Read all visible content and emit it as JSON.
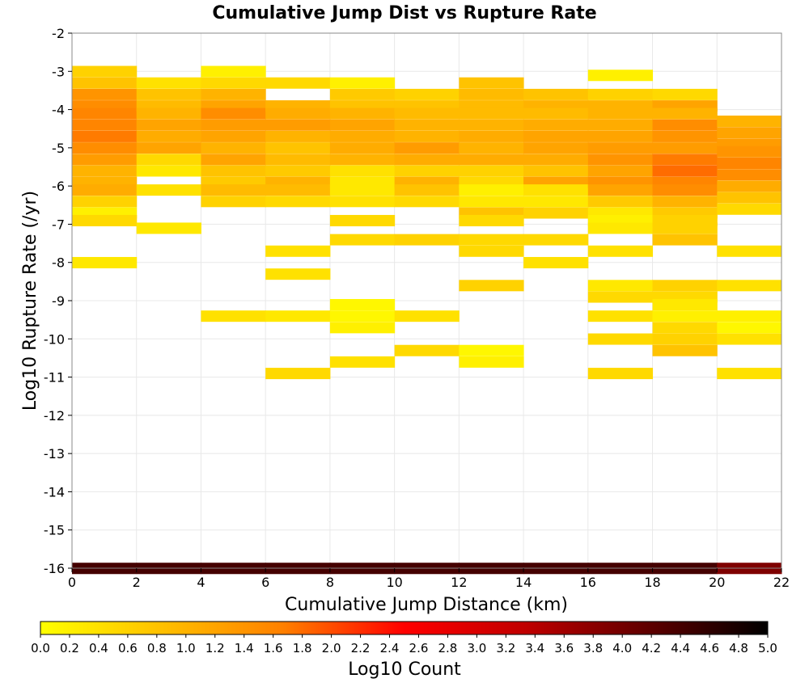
{
  "chart_data": {
    "type": "heatmap",
    "title": "Cumulative Jump Dist vs Rupture Rate",
    "xlabel": "Cumulative Jump Distance (km)",
    "ylabel": "Log10 Rupture Rate (/yr)",
    "colorbar_label": "Log10 Count",
    "xlim": [
      0,
      22
    ],
    "ylim": [
      -16,
      -2
    ],
    "x_ticks": [
      0,
      2,
      4,
      6,
      8,
      10,
      12,
      14,
      16,
      18,
      20,
      22
    ],
    "y_ticks": [
      -16,
      -15,
      -14,
      -13,
      -12,
      -11,
      -10,
      -9,
      -8,
      -7,
      -6,
      -5,
      -4,
      -3,
      -2
    ],
    "colorbar_range": [
      0.0,
      5.0
    ],
    "colorbar_ticks": [
      "0.0",
      "0.2",
      "0.4",
      "0.6",
      "0.8",
      "1.0",
      "1.2",
      "1.4",
      "1.6",
      "1.8",
      "2.0",
      "2.2",
      "2.4",
      "2.6",
      "2.8",
      "3.0",
      "3.2",
      "3.4",
      "3.6",
      "3.8",
      "4.0",
      "4.2",
      "4.4",
      "4.6",
      "4.8",
      "5.0"
    ],
    "colormap": [
      "#ffff00",
      "#ffc000",
      "#ff8000",
      "#ff0000",
      "#c00000",
      "#600000",
      "#000000"
    ],
    "cell_width": 2,
    "cell_height": 0.2857,
    "columns": [
      {
        "x": [
          0,
          2
        ],
        "cells": [
          [
            -3.0,
            0.6
          ],
          [
            -3.3,
            0.8
          ],
          [
            -3.6,
            1.4
          ],
          [
            -3.9,
            1.5
          ],
          [
            -4.1,
            1.6
          ],
          [
            -4.4,
            1.6
          ],
          [
            -4.7,
            1.7
          ],
          [
            -5.0,
            1.5
          ],
          [
            -5.3,
            1.3
          ],
          [
            -5.6,
            1.0
          ],
          [
            -5.9,
            1.0
          ],
          [
            -6.1,
            1.1
          ],
          [
            -6.4,
            0.6
          ],
          [
            -6.7,
            0.2
          ],
          [
            -6.9,
            0.5
          ],
          [
            -8.0,
            0.3
          ],
          [
            -16.0,
            4.4
          ]
        ]
      },
      {
        "x": [
          2,
          4
        ],
        "cells": [
          [
            -3.3,
            0.4
          ],
          [
            -3.6,
            0.8
          ],
          [
            -3.9,
            0.9
          ],
          [
            -4.1,
            1.0
          ],
          [
            -4.4,
            1.2
          ],
          [
            -4.7,
            1.1
          ],
          [
            -5.0,
            1.2
          ],
          [
            -5.3,
            0.5
          ],
          [
            -5.6,
            0.3
          ],
          [
            -6.1,
            0.4
          ],
          [
            -7.1,
            0.3
          ],
          [
            -16.0,
            4.4
          ]
        ]
      },
      {
        "x": [
          4,
          6
        ],
        "cells": [
          [
            -3.0,
            0.2
          ],
          [
            -3.3,
            0.5
          ],
          [
            -3.6,
            1.0
          ],
          [
            -3.9,
            1.2
          ],
          [
            -4.1,
            1.5
          ],
          [
            -4.4,
            1.3
          ],
          [
            -4.7,
            1.2
          ],
          [
            -5.0,
            1.0
          ],
          [
            -5.3,
            1.2
          ],
          [
            -5.6,
            0.8
          ],
          [
            -5.9,
            0.7
          ],
          [
            -6.1,
            0.9
          ],
          [
            -6.4,
            0.6
          ],
          [
            -9.4,
            0.4
          ],
          [
            -16.0,
            4.4
          ]
        ]
      },
      {
        "x": [
          6,
          8
        ],
        "cells": [
          [
            -3.3,
            0.5
          ],
          [
            -3.9,
            1.0
          ],
          [
            -4.1,
            1.1
          ],
          [
            -4.4,
            1.3
          ],
          [
            -4.7,
            1.0
          ],
          [
            -5.0,
            0.8
          ],
          [
            -5.3,
            0.9
          ],
          [
            -5.6,
            0.7
          ],
          [
            -5.9,
            1.0
          ],
          [
            -6.1,
            0.9
          ],
          [
            -6.4,
            0.5
          ],
          [
            -7.7,
            0.4
          ],
          [
            -8.3,
            0.4
          ],
          [
            -9.4,
            0.3
          ],
          [
            -10.9,
            0.5
          ],
          [
            -16.0,
            4.4
          ]
        ]
      },
      {
        "x": [
          8,
          10
        ],
        "cells": [
          [
            -3.3,
            0.2
          ],
          [
            -3.6,
            0.7
          ],
          [
            -3.9,
            0.8
          ],
          [
            -4.1,
            1.0
          ],
          [
            -4.4,
            1.2
          ],
          [
            -4.7,
            1.1
          ],
          [
            -5.0,
            1.1
          ],
          [
            -5.3,
            1.0
          ],
          [
            -5.6,
            0.4
          ],
          [
            -5.9,
            0.3
          ],
          [
            -6.1,
            0.3
          ],
          [
            -6.4,
            0.4
          ],
          [
            -6.9,
            0.5
          ],
          [
            -7.4,
            0.5
          ],
          [
            -9.1,
            0.1
          ],
          [
            -9.4,
            0.1
          ],
          [
            -9.7,
            0.2
          ],
          [
            -10.6,
            0.4
          ],
          [
            -16.0,
            4.4
          ]
        ]
      },
      {
        "x": [
          10,
          12
        ],
        "cells": [
          [
            -3.6,
            0.6
          ],
          [
            -3.9,
            0.8
          ],
          [
            -4.1,
            0.9
          ],
          [
            -4.4,
            1.0
          ],
          [
            -4.7,
            1.0
          ],
          [
            -5.0,
            1.3
          ],
          [
            -5.3,
            1.1
          ],
          [
            -5.6,
            0.6
          ],
          [
            -5.9,
            1.0
          ],
          [
            -6.1,
            0.8
          ],
          [
            -6.4,
            0.5
          ],
          [
            -7.4,
            0.6
          ],
          [
            -9.4,
            0.4
          ],
          [
            -10.3,
            0.5
          ],
          [
            -16.0,
            4.4
          ]
        ]
      },
      {
        "x": [
          12,
          14
        ],
        "cells": [
          [
            -3.3,
            0.8
          ],
          [
            -3.6,
            0.9
          ],
          [
            -3.9,
            0.9
          ],
          [
            -4.1,
            0.9
          ],
          [
            -4.4,
            1.0
          ],
          [
            -4.7,
            1.1
          ],
          [
            -5.0,
            1.0
          ],
          [
            -5.3,
            1.1
          ],
          [
            -5.6,
            0.6
          ],
          [
            -5.9,
            0.5
          ],
          [
            -6.1,
            0.2
          ],
          [
            -6.4,
            0.3
          ],
          [
            -6.7,
            0.8
          ],
          [
            -6.9,
            0.5
          ],
          [
            -7.4,
            0.5
          ],
          [
            -7.7,
            0.5
          ],
          [
            -8.6,
            0.6
          ],
          [
            -10.3,
            0.1
          ],
          [
            -10.6,
            0.2
          ],
          [
            -16.0,
            4.4
          ]
        ]
      },
      {
        "x": [
          14,
          16
        ],
        "cells": [
          [
            -3.6,
            0.8
          ],
          [
            -3.9,
            1.0
          ],
          [
            -4.1,
            0.9
          ],
          [
            -4.4,
            1.1
          ],
          [
            -4.7,
            1.2
          ],
          [
            -5.0,
            1.2
          ],
          [
            -5.3,
            1.1
          ],
          [
            -5.6,
            0.8
          ],
          [
            -5.9,
            1.2
          ],
          [
            -6.1,
            0.4
          ],
          [
            -6.4,
            0.3
          ],
          [
            -6.7,
            0.6
          ],
          [
            -7.4,
            0.5
          ],
          [
            -8.0,
            0.4
          ],
          [
            -16.0,
            4.4
          ]
        ]
      },
      {
        "x": [
          16,
          18
        ],
        "cells": [
          [
            -3.1,
            0.2
          ],
          [
            -3.6,
            0.6
          ],
          [
            -3.9,
            1.0
          ],
          [
            -4.1,
            1.0
          ],
          [
            -4.4,
            1.1
          ],
          [
            -4.7,
            1.2
          ],
          [
            -5.0,
            1.3
          ],
          [
            -5.3,
            1.4
          ],
          [
            -5.6,
            1.2
          ],
          [
            -5.9,
            1.4
          ],
          [
            -6.1,
            1.2
          ],
          [
            -6.4,
            0.7
          ],
          [
            -6.7,
            0.3
          ],
          [
            -6.9,
            0.2
          ],
          [
            -7.1,
            0.3
          ],
          [
            -7.7,
            0.4
          ],
          [
            -8.6,
            0.3
          ],
          [
            -8.9,
            0.5
          ],
          [
            -9.4,
            0.4
          ],
          [
            -10.0,
            0.5
          ],
          [
            -10.9,
            0.5
          ],
          [
            -16.0,
            4.4
          ]
        ]
      },
      {
        "x": [
          18,
          20
        ],
        "cells": [
          [
            -3.6,
            0.5
          ],
          [
            -3.9,
            1.2
          ],
          [
            -4.1,
            1.0
          ],
          [
            -4.4,
            1.5
          ],
          [
            -4.7,
            1.4
          ],
          [
            -5.0,
            1.3
          ],
          [
            -5.3,
            1.7
          ],
          [
            -5.6,
            1.8
          ],
          [
            -5.9,
            1.6
          ],
          [
            -6.1,
            1.5
          ],
          [
            -6.4,
            1.0
          ],
          [
            -6.7,
            0.7
          ],
          [
            -6.9,
            0.6
          ],
          [
            -7.1,
            0.6
          ],
          [
            -7.4,
            0.8
          ],
          [
            -8.6,
            0.6
          ],
          [
            -8.9,
            0.5
          ],
          [
            -9.1,
            0.3
          ],
          [
            -9.4,
            0.2
          ],
          [
            -9.7,
            0.5
          ],
          [
            -10.0,
            0.6
          ],
          [
            -10.3,
            0.8
          ],
          [
            -16.0,
            4.4
          ]
        ]
      },
      {
        "x": [
          20,
          22
        ],
        "cells": [
          [
            -4.3,
            1.0
          ],
          [
            -4.6,
            1.2
          ],
          [
            -4.9,
            1.3
          ],
          [
            -5.1,
            1.4
          ],
          [
            -5.4,
            1.6
          ],
          [
            -5.7,
            1.5
          ],
          [
            -6.0,
            1.1
          ],
          [
            -6.3,
            0.8
          ],
          [
            -6.6,
            0.5
          ],
          [
            -7.7,
            0.4
          ],
          [
            -8.6,
            0.4
          ],
          [
            -9.4,
            0.2
          ],
          [
            -9.7,
            0.1
          ],
          [
            -10.0,
            0.4
          ],
          [
            -10.9,
            0.4
          ],
          [
            -16.0,
            3.9
          ]
        ]
      }
    ]
  }
}
